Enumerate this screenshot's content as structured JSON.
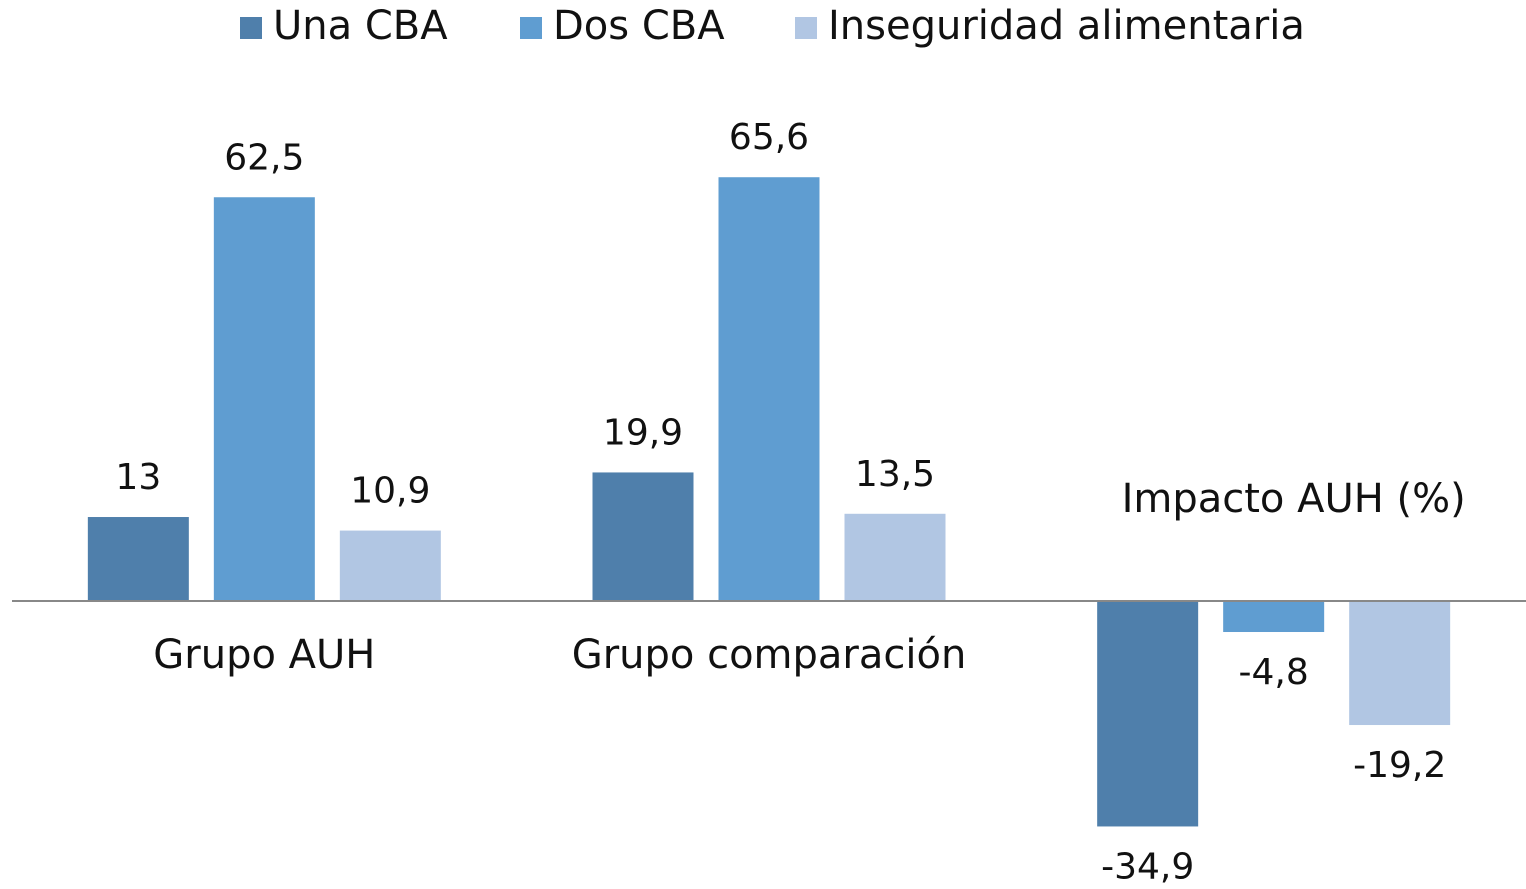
{
  "chart_data": {
    "type": "bar",
    "categories": [
      "Grupo AUH",
      "Grupo comparación",
      "Impacto AUH (%)"
    ],
    "series": [
      {
        "name": "Una CBA",
        "color": "#4f7fab",
        "values": [
          13,
          19.9,
          -34.9
        ],
        "value_labels": [
          "13",
          "19,9",
          "-34,9"
        ]
      },
      {
        "name": "Dos CBA",
        "color": "#5f9dd1",
        "values": [
          62.5,
          65.6,
          -4.8
        ],
        "value_labels": [
          "62,5",
          "65,6",
          "-4,8"
        ]
      },
      {
        "name": "Inseguridad alimentaria",
        "color": "#b1c6e3",
        "values": [
          10.9,
          13.5,
          -19.2
        ],
        "value_labels": [
          "10,9",
          "13,5",
          "-19,2"
        ]
      }
    ],
    "ylim": [
      -40,
      80
    ],
    "legend": "top"
  }
}
